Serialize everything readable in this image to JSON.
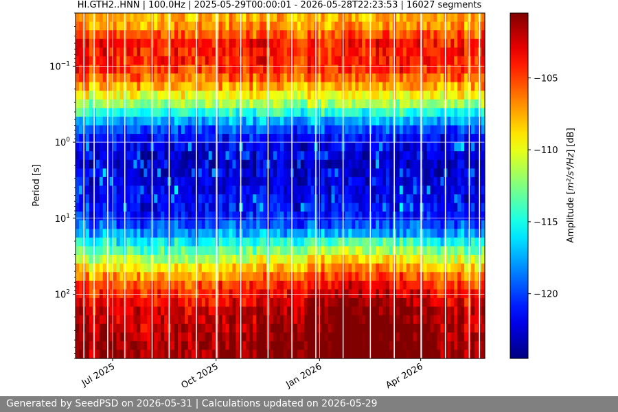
{
  "chart_data": {
    "type": "heatmap",
    "title": "HI.GTH2..HNN | 100.0Hz | 2025-05-29T00:00:01 - 2026-05-28T22:23:53 | 16027 segments",
    "ylabel": "Period [s]",
    "yscale": "log",
    "ylim": [
      0.02,
      700
    ],
    "y_ticks": [
      {
        "value": 0.1,
        "base": "10",
        "exp": "−1"
      },
      {
        "value": 1,
        "base": "10",
        "exp": "0"
      },
      {
        "value": 10,
        "base": "10",
        "exp": "1"
      },
      {
        "value": 100,
        "base": "10",
        "exp": "2"
      }
    ],
    "y_inverted": true,
    "xlim": [
      "2025-05-29",
      "2026-05-28"
    ],
    "x_ticks": [
      {
        "value": "2025-07-01",
        "label": "Jul 2025"
      },
      {
        "value": "2025-10-01",
        "label": "Oct 2025"
      },
      {
        "value": "2026-01-01",
        "label": "Jan 2026"
      },
      {
        "value": "2026-04-01",
        "label": "Apr 2026"
      }
    ],
    "grid": true,
    "colormap": "jet",
    "colorbar": {
      "label_prefix": "Amplitude [",
      "label_math": "m²/s⁴/Hz",
      "label_suffix": "] [dB]",
      "range": [
        -124.5,
        -100.5
      ],
      "ticks": [
        -105,
        -110,
        -115,
        -120
      ],
      "tick_labels": [
        "−105",
        "−110",
        "−115",
        "−120"
      ]
    },
    "amplitude_profile": [
      {
        "period": 0.02,
        "db": -108
      },
      {
        "period": 0.03,
        "db": -107
      },
      {
        "period": 0.05,
        "db": -104
      },
      {
        "period": 0.08,
        "db": -104
      },
      {
        "period": 0.12,
        "db": -105
      },
      {
        "period": 0.2,
        "db": -108
      },
      {
        "period": 0.35,
        "db": -113
      },
      {
        "period": 0.6,
        "db": -119
      },
      {
        "period": 1,
        "db": -122
      },
      {
        "period": 2,
        "db": -123
      },
      {
        "period": 5,
        "db": -122
      },
      {
        "period": 10,
        "db": -121
      },
      {
        "period": 20,
        "db": -116
      },
      {
        "period": 40,
        "db": -110
      },
      {
        "period": 80,
        "db": -105
      },
      {
        "period": 150,
        "db": -103
      },
      {
        "period": 300,
        "db": -102
      },
      {
        "period": 700,
        "db": -101
      }
    ]
  },
  "footer": {
    "text": "Generated by SeedPSD on 2026-05-31 | Calculations updated on 2026-05-29"
  }
}
